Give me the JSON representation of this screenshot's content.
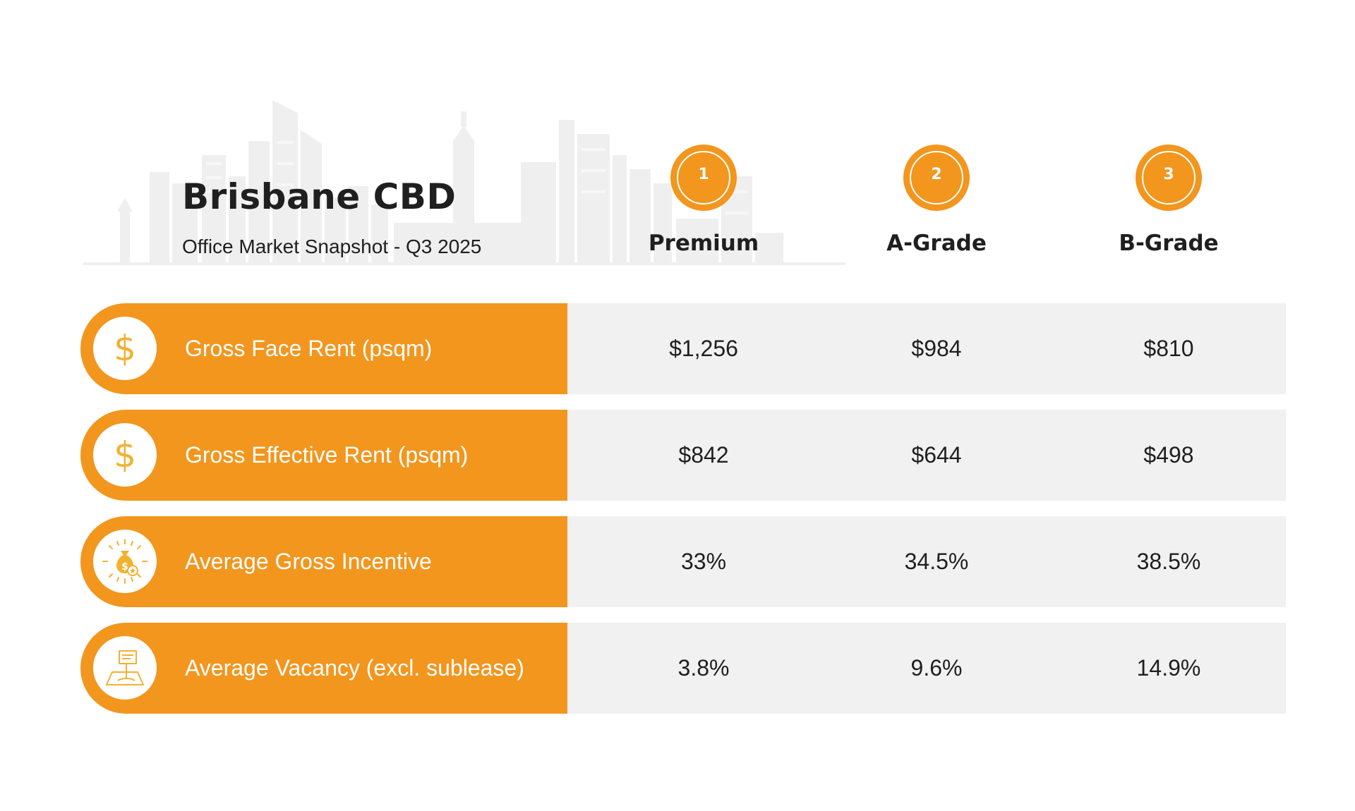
{
  "header": {
    "title": "Brisbane CBD",
    "subtitle": "Office Market Snapshot - Q3 2025"
  },
  "colors": {
    "accent": "#f2961e",
    "row_background": "#f1f1f1",
    "icon_tint": "#f3b130"
  },
  "columns": [
    {
      "number": "1",
      "label": "Premium"
    },
    {
      "number": "2",
      "label": "A-Grade"
    },
    {
      "number": "3",
      "label": "B-Grade"
    }
  ],
  "rows": [
    {
      "icon": "dollar-icon",
      "label": "Gross Face Rent (psqm)",
      "values": [
        "$1,256",
        "$984",
        "$810"
      ]
    },
    {
      "icon": "dollar-icon",
      "label": "Gross Effective Rent (psqm)",
      "values": [
        "$842",
        "$644",
        "$498"
      ]
    },
    {
      "icon": "money-bag-icon",
      "label": "Average Gross Incentive",
      "values": [
        "33%",
        "34.5%",
        "38.5%"
      ]
    },
    {
      "icon": "map-sign-icon",
      "label": "Average Vacancy (excl. sublease)",
      "values": [
        "3.8%",
        "9.6%",
        "14.9%"
      ]
    }
  ]
}
